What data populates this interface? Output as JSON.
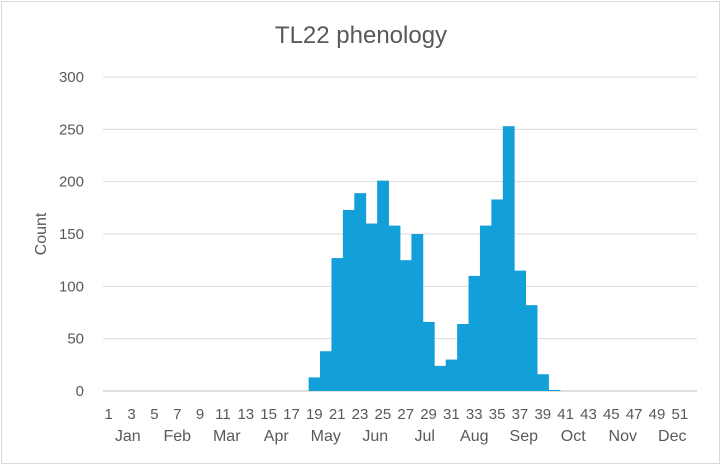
{
  "chart_data": {
    "type": "bar",
    "title": "TL22 phenology",
    "xlabel": "",
    "ylabel": "Count",
    "ylim": [
      0,
      300
    ],
    "yticks": [
      0,
      50,
      100,
      150,
      200,
      250,
      300
    ],
    "grid": true,
    "x": [
      1,
      2,
      3,
      4,
      5,
      6,
      7,
      8,
      9,
      10,
      11,
      12,
      13,
      14,
      15,
      16,
      17,
      18,
      19,
      20,
      21,
      22,
      23,
      24,
      25,
      26,
      27,
      28,
      29,
      30,
      31,
      32,
      33,
      34,
      35,
      36,
      37,
      38,
      39,
      40,
      41,
      42,
      43,
      44,
      45,
      46,
      47,
      48,
      49,
      50,
      51,
      52
    ],
    "x_tick_labels": [
      "1",
      "3",
      "5",
      "7",
      "9",
      "11",
      "13",
      "15",
      "17",
      "19",
      "21",
      "23",
      "25",
      "27",
      "29",
      "31",
      "33",
      "35",
      "37",
      "39",
      "41",
      "43",
      "45",
      "47",
      "49",
      "51"
    ],
    "months": [
      "Jan",
      "Feb",
      "Mar",
      "Apr",
      "May",
      "Jun",
      "Jul",
      "Aug",
      "Sep",
      "Oct",
      "Nov",
      "Dec"
    ],
    "series": [
      {
        "color": "#139fd8",
        "values": [
          0,
          0,
          0,
          0,
          0,
          0,
          0,
          0,
          0,
          0,
          0,
          0,
          0,
          0,
          0,
          0,
          0,
          0,
          13,
          38,
          127,
          173,
          189,
          160,
          201,
          158,
          125,
          150,
          66,
          24,
          30,
          64,
          110,
          158,
          183,
          253,
          115,
          82,
          16,
          1,
          0,
          0,
          0,
          0,
          0,
          0,
          0,
          0,
          0,
          0,
          0,
          0
        ]
      }
    ]
  }
}
